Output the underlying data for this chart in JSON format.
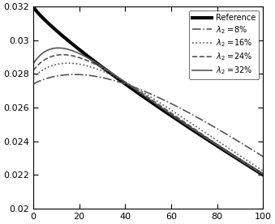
{
  "title": "",
  "xlabel": "",
  "ylabel": "",
  "xlim": [
    0,
    100
  ],
  "ylim": [
    0.02,
    0.032
  ],
  "yticks": [
    0.02,
    0.022,
    0.024,
    0.026,
    0.028,
    0.03,
    0.032
  ],
  "xticks": [
    0,
    20,
    40,
    60,
    80,
    100
  ],
  "reference_color": "#000000",
  "reference_lw": 3.0,
  "other_color": "#555555",
  "other_lw": 1.2,
  "legend_labels": [
    "Reference",
    "$\\lambda_2$ =8%",
    "$\\lambda_2$ =16%",
    "$\\lambda_2$ =24%",
    "$\\lambda_2$ =32%"
  ],
  "legend_styles": [
    "solid",
    "dashdot",
    "dotted",
    "dashed",
    "solid"
  ],
  "legend_lws": [
    3.0,
    1.2,
    1.2,
    1.2,
    1.2
  ],
  "background_color": "#ffffff",
  "r0": 0.032,
  "r_end": 0.022,
  "lam2_values": [
    0.08,
    0.16,
    0.24,
    0.32
  ]
}
